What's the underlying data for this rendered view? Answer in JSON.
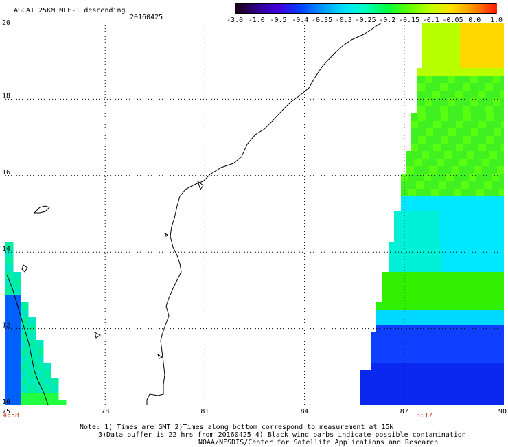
{
  "title": "ASCAT 25KM MLE-1 descending",
  "date": "20160425",
  "colorbar": {
    "labels": [
      "-3.0",
      "-1.0",
      "-0.5",
      "-0.4",
      "-0.35",
      "-0.3",
      "-0.25",
      "-0.2",
      "-0.15",
      "-0.1",
      "-0.05",
      "0.0",
      "1.0"
    ],
    "colors": [
      "#1a0010",
      "#300090",
      "#4000e0",
      "#0040ff",
      "#0098ff",
      "#00e0ff",
      "#00ffc0",
      "#00ff40",
      "#60ff00",
      "#c0ff00",
      "#ffe000",
      "#ff9000",
      "#ff2000"
    ]
  },
  "map": {
    "lon_ticks": [
      "75",
      "78",
      "81",
      "84",
      "87",
      "90"
    ],
    "lat_ticks": [
      "20",
      "18",
      "16",
      "14",
      "12",
      "10"
    ],
    "lon_range": [
      75,
      90
    ],
    "lat_range": [
      10,
      20
    ],
    "grid": true,
    "left_swath_time": "4:58",
    "right_swath_time": "3:17"
  },
  "notes": {
    "line1": "Note: 1) Times are GMT 2)Times along bottom correspond to measurement at 15N",
    "line2": "3)Data buffer is 22 hrs from 20160425 4) Black wind barbs indicate possible contamination",
    "line3": "NOAA/NESDIS/Center for Satellite Applications and Research"
  }
}
